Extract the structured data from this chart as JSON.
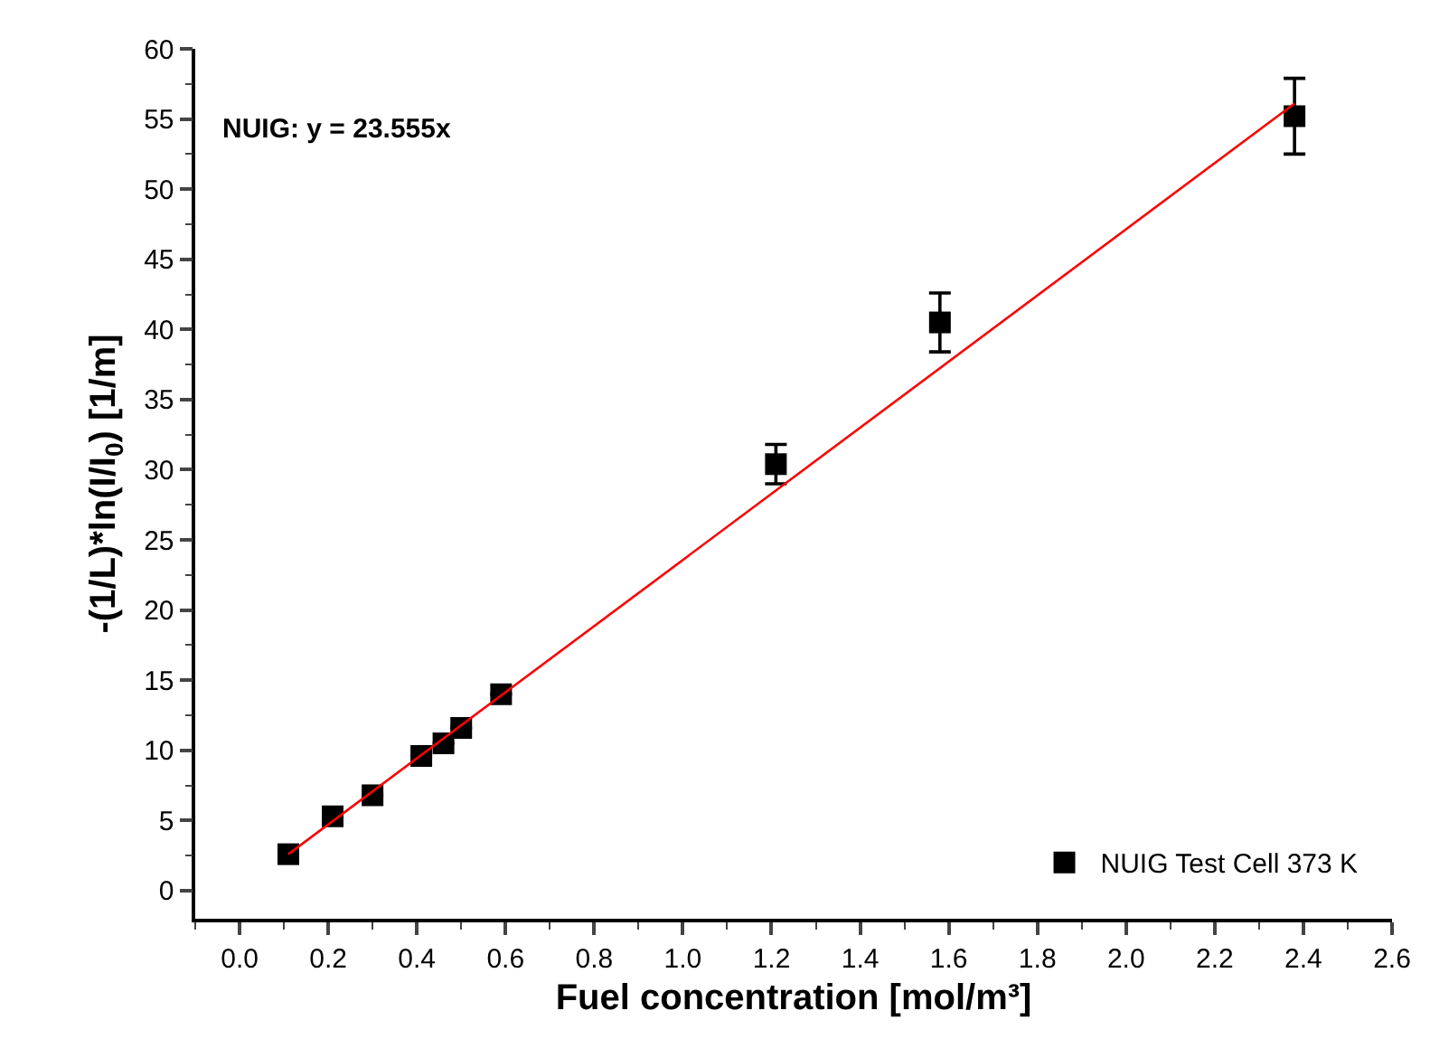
{
  "chart_data": {
    "type": "scatter",
    "xlabel": "Fuel concentration [mol/m³]",
    "ylabel": "-(1/L)*ln(I/I$_{0}$) [1/m]",
    "annotations": [
      "NUIG: y = 23.555x"
    ],
    "xlim": [
      -0.1,
      2.6
    ],
    "xticks": [
      {
        "value": 0,
        "label": "0.0"
      },
      0.2,
      0.4,
      0.6,
      0.8,
      {
        "value": 1,
        "label": "1.0"
      },
      1.2,
      1.4,
      1.6,
      1.8,
      {
        "value": 2,
        "label": "2.0"
      },
      2.2,
      2.4,
      2.6
    ],
    "ylim": [
      -2,
      60
    ],
    "yticks": [
      0,
      5,
      10,
      15,
      20,
      25,
      30,
      35,
      40,
      45,
      50,
      55,
      60
    ],
    "grid": false,
    "legend": "bottom right",
    "marker": "square",
    "series": [
      {
        "name": "NUIG Test Cell 373 K",
        "color": "#000000",
        "x": [
          0.11,
          0.21,
          0.3,
          0.41,
          0.46,
          0.5,
          0.59,
          1.21,
          1.58,
          2.38
        ],
        "values": [
          2.6,
          5.3,
          6.8,
          9.6,
          10.5,
          11.6,
          14.0,
          30.4,
          40.5,
          55.2
        ],
        "errors": [
          null,
          null,
          null,
          null,
          null,
          null,
          null,
          1.4,
          2.1,
          2.7
        ]
      },
      {
        "type": "line",
        "color": "#ff0000",
        "x": [
          0.11,
          2.38
        ],
        "values": [
          2.6,
          56.1
        ],
        "line_style": "solid",
        "marker": "none"
      }
    ]
  }
}
